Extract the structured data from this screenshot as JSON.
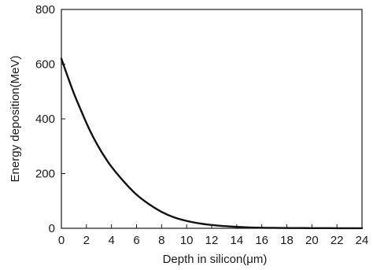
{
  "chart_data": {
    "type": "line",
    "title": "",
    "xlabel": "Depth in silicon(μm)",
    "ylabel": "Energy deposition(MeV)",
    "xlim": [
      0,
      24
    ],
    "ylim": [
      0,
      800
    ],
    "xticks": [
      0,
      2,
      4,
      6,
      8,
      10,
      12,
      14,
      16,
      18,
      20,
      22,
      24
    ],
    "yticks": [
      0,
      200,
      400,
      600,
      800
    ],
    "grid": false,
    "legend": "none",
    "series": [
      {
        "color": "#111111",
        "x": [
          0,
          0.5,
          1,
          1.5,
          2,
          2.5,
          3,
          3.5,
          4,
          5,
          6,
          7,
          8,
          9,
          10,
          11,
          12,
          13,
          14,
          15,
          16,
          17,
          18,
          19,
          20,
          21,
          22,
          23,
          24
        ],
        "y": [
          620,
          555,
          493,
          438,
          385,
          337,
          295,
          258,
          225,
          170,
          123,
          88,
          60,
          40,
          27,
          18,
          12,
          8,
          5,
          3,
          2,
          1.5,
          1,
          1,
          0.5,
          0.5,
          0.3,
          0.2,
          0.1
        ]
      }
    ]
  }
}
